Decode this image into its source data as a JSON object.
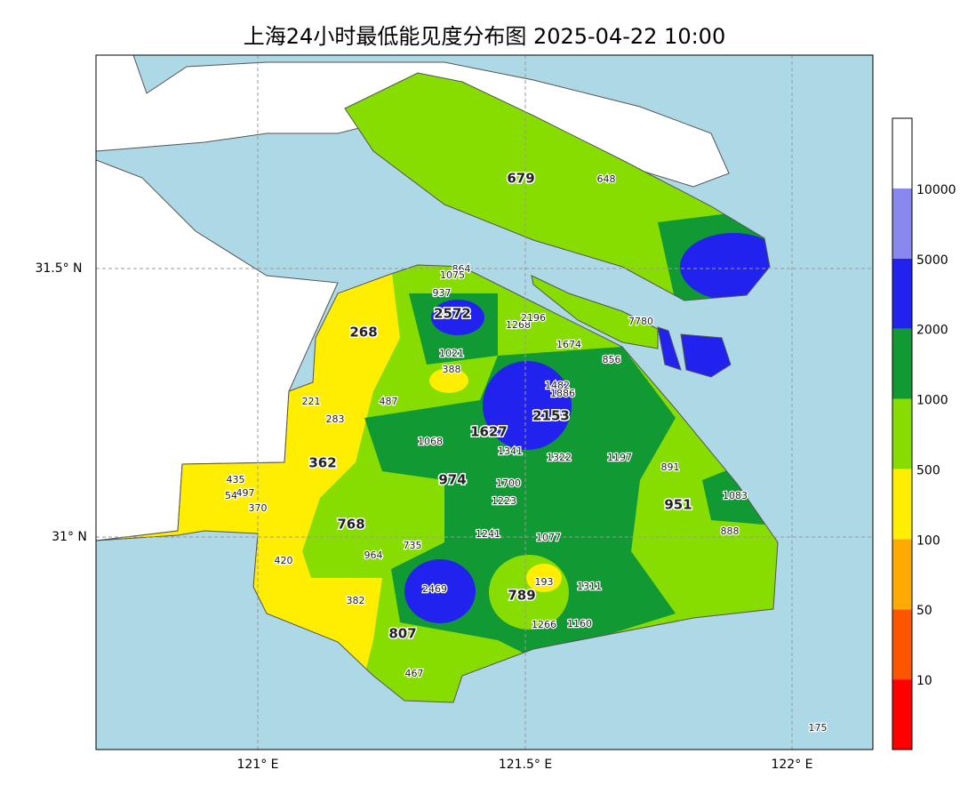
{
  "title": "上海24小时最低能见度分布图 2025-04-22 10:00",
  "lat_labels": [
    "31.5° N",
    "31° N"
  ],
  "lon_labels": [
    "121° E",
    "121.5° E",
    "122° E"
  ],
  "legend": {
    "colors": [
      "#ff0000",
      "#ff5500",
      "#ffaa00",
      "#ffee00",
      "#88dd00",
      "#119933",
      "#2222ee",
      "#8888ee",
      "#ffffff"
    ],
    "ticks": [
      "10",
      "50",
      "100",
      "500",
      "1000",
      "2000",
      "5000",
      "10000"
    ]
  },
  "major_stations": [
    "679",
    "2572",
    "268",
    "362",
    "974",
    "1627",
    "2153",
    "768",
    "951",
    "789",
    "807"
  ],
  "minor_stations": [
    "648",
    "864",
    "1075",
    "937",
    "1268",
    "2196",
    "1674",
    "7780",
    "856",
    "1021",
    "388",
    "1482",
    "1886",
    "221",
    "283",
    "487",
    "1068",
    "1341",
    "1322",
    "1197",
    "891",
    "435",
    "497",
    "54",
    "370",
    "1700",
    "1223",
    "1083",
    "420",
    "964",
    "735",
    "1241",
    "1077",
    "888",
    "2469",
    "193",
    "1311",
    "382",
    "1266",
    "1160",
    "467",
    "175"
  ]
}
